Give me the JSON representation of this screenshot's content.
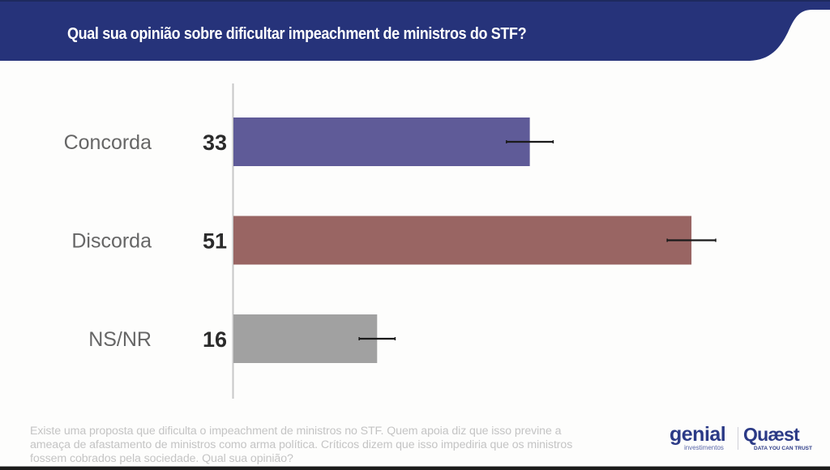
{
  "header": {
    "title": "Qual sua opinião sobre dificultar impeachment de ministros do STF?",
    "background_color": "#26337a"
  },
  "chart_data": {
    "type": "bar",
    "orientation": "horizontal",
    "title": "Qual sua opinião sobre dificultar impeachment de ministros do STF?",
    "xlabel": "",
    "ylabel": "",
    "xlim": [
      0,
      60
    ],
    "grid": false,
    "legend": "none",
    "categories": [
      "Concorda",
      "Discorda",
      "NS/NR"
    ],
    "values": [
      33,
      51,
      16
    ],
    "error_margin": [
      2.6,
      2.7,
      2.0
    ],
    "colors": [
      "#5f5b98",
      "#996563",
      "#a1a1a1"
    ],
    "error_bar_color": "#1a1a1a",
    "axis_color": "#c8c8c8"
  },
  "footnote": "Existe uma proposta que dificulta o impeachment de ministros no STF. Quem apoia diz que isso previne a ameaça de afastamento de ministros como arma política. Críticos dizem que isso impediria que os ministros fossem cobrados pela sociedade. Qual sua opinião?",
  "logos": {
    "genial": "genial",
    "genial_sub": "investimentos",
    "quaest": "Quæst",
    "quaest_sub": "DATA YOU CAN TRUST"
  }
}
